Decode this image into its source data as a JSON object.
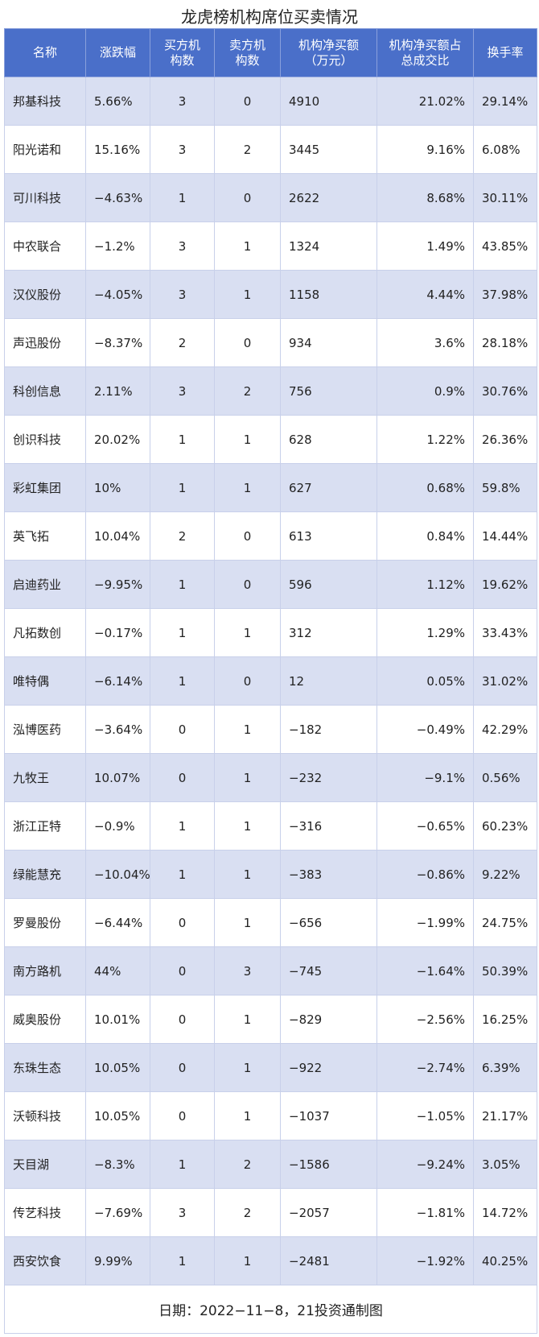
{
  "title": "龙虎榜机构席位买卖情况",
  "table": {
    "headers": [
      "名称",
      "涨跌幅",
      "买方机\n构数",
      "卖方机\n构数",
      "机构净买额\n（万元）",
      "机构净买额占\n总成交比",
      "换手率"
    ],
    "rows": [
      [
        "邦基科技",
        "5.66%",
        "3",
        "0",
        "4910",
        "21.02%",
        "29.14%"
      ],
      [
        "阳光诺和",
        "15.16%",
        "3",
        "2",
        "3445",
        "9.16%",
        "6.08%"
      ],
      [
        "可川科技",
        "−4.63%",
        "1",
        "0",
        "2622",
        "8.68%",
        "30.11%"
      ],
      [
        "中农联合",
        "−1.2%",
        "3",
        "1",
        "1324",
        "1.49%",
        "43.85%"
      ],
      [
        "汉仪股份",
        "−4.05%",
        "3",
        "1",
        "1158",
        "4.44%",
        "37.98%"
      ],
      [
        "声迅股份",
        "−8.37%",
        "2",
        "0",
        "934",
        "3.6%",
        "28.18%"
      ],
      [
        "科创信息",
        "2.11%",
        "3",
        "2",
        "756",
        "0.9%",
        "30.76%"
      ],
      [
        "创识科技",
        "20.02%",
        "1",
        "1",
        "628",
        "1.22%",
        "26.36%"
      ],
      [
        "彩虹集团",
        "10%",
        "1",
        "1",
        "627",
        "0.68%",
        "59.8%"
      ],
      [
        "英飞拓",
        "10.04%",
        "2",
        "0",
        "613",
        "0.84%",
        "14.44%"
      ],
      [
        "启迪药业",
        "−9.95%",
        "1",
        "0",
        "596",
        "1.12%",
        "19.62%"
      ],
      [
        "凡拓数创",
        "−0.17%",
        "1",
        "1",
        "312",
        "1.29%",
        "33.43%"
      ],
      [
        "唯特偶",
        "−6.14%",
        "1",
        "0",
        "12",
        "0.05%",
        "31.02%"
      ],
      [
        "泓博医药",
        "−3.64%",
        "0",
        "1",
        "−182",
        "−0.49%",
        "42.29%"
      ],
      [
        "九牧王",
        "10.07%",
        "0",
        "1",
        "−232",
        "−9.1%",
        "0.56%"
      ],
      [
        "浙江正特",
        "−0.9%",
        "1",
        "1",
        "−316",
        "−0.65%",
        "60.23%"
      ],
      [
        "绿能慧充",
        "−10.04%",
        "1",
        "1",
        "−383",
        "−0.86%",
        "9.22%"
      ],
      [
        "罗曼股份",
        "−6.44%",
        "0",
        "1",
        "−656",
        "−1.99%",
        "24.75%"
      ],
      [
        "南方路机",
        "44%",
        "0",
        "3",
        "−745",
        "−1.64%",
        "50.39%"
      ],
      [
        "威奥股份",
        "10.01%",
        "0",
        "1",
        "−829",
        "−2.56%",
        "16.25%"
      ],
      [
        "东珠生态",
        "10.05%",
        "0",
        "1",
        "−922",
        "−2.74%",
        "6.39%"
      ],
      [
        "沃顿科技",
        "10.05%",
        "0",
        "1",
        "−1037",
        "−1.05%",
        "21.17%"
      ],
      [
        "天目湖",
        "−8.3%",
        "1",
        "2",
        "−1586",
        "−9.24%",
        "3.05%"
      ],
      [
        "传艺科技",
        "−7.69%",
        "3",
        "2",
        "−2057",
        "−1.81%",
        "14.72%"
      ],
      [
        "西安饮食",
        "9.99%",
        "1",
        "1",
        "−2481",
        "−1.92%",
        "40.25%"
      ]
    ]
  },
  "footer": "日期：2022−11−8，21投资通制图"
}
